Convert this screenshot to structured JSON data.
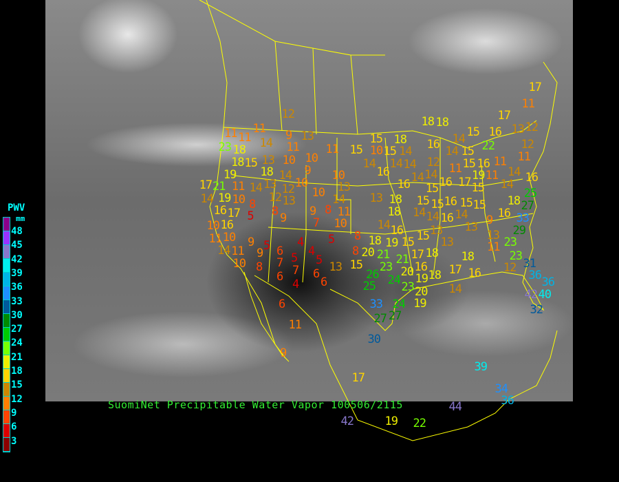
{
  "title": "SuomiNet Precipitable Water Vapor 100506/2115",
  "legend": {
    "title": "PWV",
    "unit": "mm",
    "labels": [
      "48",
      "45",
      "42",
      "39",
      "36",
      "33",
      "30",
      "27",
      "24",
      "21",
      "18",
      "15",
      "12",
      "9",
      "6",
      "3"
    ],
    "colors": [
      "#8b008b",
      "#9933ff",
      "#8877cc",
      "#00eeee",
      "#00b4e6",
      "#1e90ff",
      "#005a9c",
      "#008a00",
      "#00cc00",
      "#77ff00",
      "#eeee00",
      "#ffd400",
      "#cc8800",
      "#ff8000",
      "#ff4400",
      "#dd0000",
      "#8b0000"
    ]
  },
  "map": {
    "basemap": "satellite-infrared-grayscale",
    "boundary_color": "#ffff00"
  },
  "stations": [
    23,
    18,
    18,
    15,
    13,
    18,
    19,
    11,
    14,
    9,
    13,
    11,
    10,
    10,
    9,
    14,
    10,
    11,
    15,
    15,
    10,
    13,
    10,
    14,
    12,
    12,
    13,
    14,
    13,
    11,
    21,
    19,
    10,
    8,
    16,
    17,
    16,
    10,
    5,
    8,
    9,
    9,
    7,
    8,
    11,
    10,
    13,
    18,
    18,
    14,
    16,
    8,
    5,
    4,
    5,
    9,
    9,
    6,
    7,
    5,
    7,
    4,
    5,
    6,
    6,
    4,
    6,
    8,
    10,
    11,
    14,
    11,
    13,
    15,
    8,
    18,
    19,
    15,
    15,
    20,
    21,
    23,
    21,
    17,
    18,
    26,
    25,
    24,
    23,
    20,
    16,
    19,
    18,
    20,
    19,
    17,
    14,
    16,
    33,
    24,
    27,
    27,
    18,
    13,
    13,
    9,
    16,
    13,
    11,
    23,
    29,
    33,
    27,
    25,
    18,
    23,
    12,
    31,
    36,
    36,
    42,
    40,
    32,
    15,
    14,
    14,
    13,
    15,
    16,
    16,
    14,
    15,
    15,
    15,
    14,
    19,
    16,
    15,
    16,
    14,
    14,
    12,
    11,
    15,
    17,
    16,
    11,
    11,
    14,
    16,
    16,
    14,
    14,
    14,
    15,
    14,
    18,
    16,
    14,
    14,
    15,
    22,
    15,
    16,
    13,
    12,
    11,
    18,
    18,
    12,
    11,
    11,
    17,
    14,
    10,
    6,
    11,
    9,
    17,
    39,
    34,
    36,
    44,
    22,
    30,
    19,
    42,
    17,
    17,
    12,
    11,
    10
  ]
}
